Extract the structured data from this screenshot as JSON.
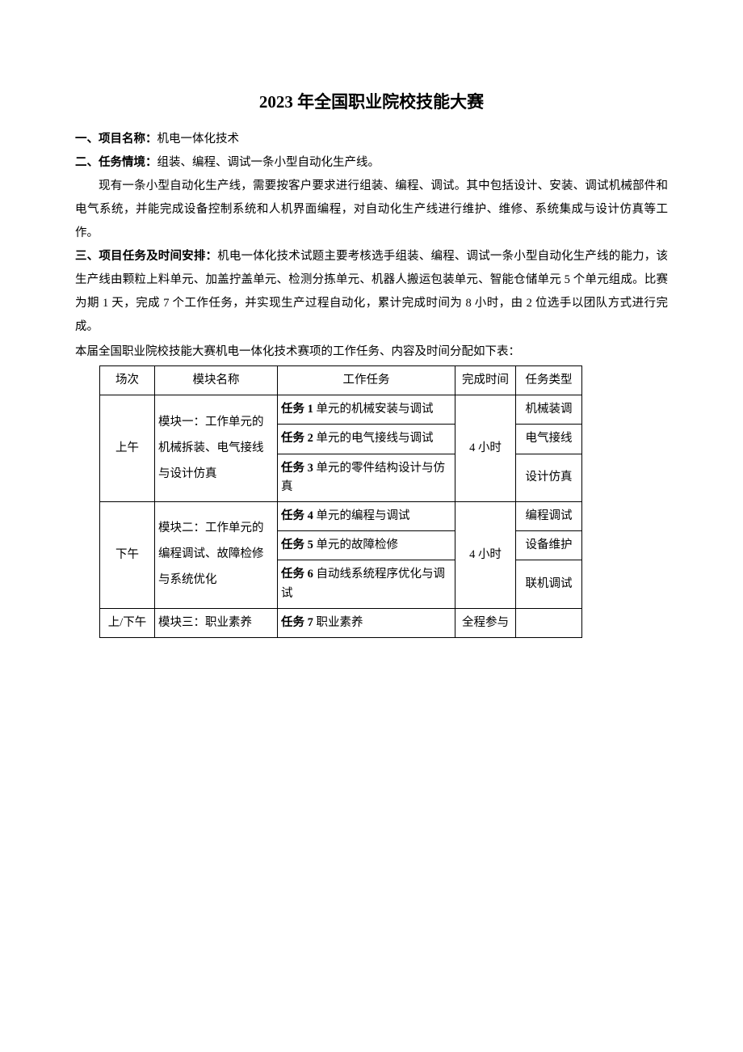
{
  "title": "2023 年全国职业院校技能大赛",
  "section1": {
    "label": "一、项目名称：",
    "text": "机电一体化技术"
  },
  "section2": {
    "label": "二、任务情境：",
    "text": "组装、编程、调试一条小型自动化生产线。"
  },
  "para1": "现有一条小型自动化生产线，需要按客户要求进行组装、编程、调试。其中包括设计、安装、调试机械部件和电气系统，并能完成设备控制系统和人机界面编程，对自动化生产线进行维护、维修、系统集成与设计仿真等工作。",
  "section3": {
    "label": "三、项目任务及时间安排：",
    "text": "机电一体化技术试题主要考核选手组装、编程、调试一条小型自动化生产线的能力，该生产线由颗粒上料单元、加盖拧盖单元、检测分拣单元、机器人搬运包装单元、智能仓储单元 5 个单元组成。比赛为期 1 天，完成 7 个工作任务，并实现生产过程自动化，累计完成时间为 8 小时，由 2 位选手以团队方式进行完成。"
  },
  "tableIntro": "本届全国职业院校技能大赛机电一体化技术赛项的工作任务、内容及时间分配如下表：",
  "table": {
    "headers": {
      "session": "场次",
      "module": "模块名称",
      "task": "工作任务",
      "time": "完成时间",
      "type": "任务类型"
    },
    "rows": [
      {
        "session": "上午",
        "module": "模块一：工作单元的机械拆装、电气接线与设计仿真",
        "time": "4 小时",
        "tasks": [
          {
            "task_bold": "任务 1",
            "task_rest": " 单元的机械安装与调试",
            "type": "机械装调"
          },
          {
            "task_bold": "任务 2",
            "task_rest": " 单元的电气接线与调试",
            "type": "电气接线"
          },
          {
            "task_bold": "任务 3",
            "task_rest": " 单元的零件结构设计与仿真",
            "type": "设计仿真"
          }
        ]
      },
      {
        "session": "下午",
        "module": "模块二：工作单元的编程调试、故障检修与系统优化",
        "time": "4 小时",
        "tasks": [
          {
            "task_bold": "任务 4",
            "task_rest": " 单元的编程与调试",
            "type": "编程调试"
          },
          {
            "task_bold": "任务 5",
            "task_rest": " 单元的故障检修",
            "type": "设备维护"
          },
          {
            "task_bold": "任务 6",
            "task_rest": " 自动线系统程序优化与调试",
            "type": "联机调试"
          }
        ]
      },
      {
        "session": "上/下午",
        "module": "模块三：职业素养",
        "time": "全程参与",
        "tasks": [
          {
            "task_bold": "任务 7",
            "task_rest": " 职业素养",
            "type": ""
          }
        ]
      }
    ]
  }
}
